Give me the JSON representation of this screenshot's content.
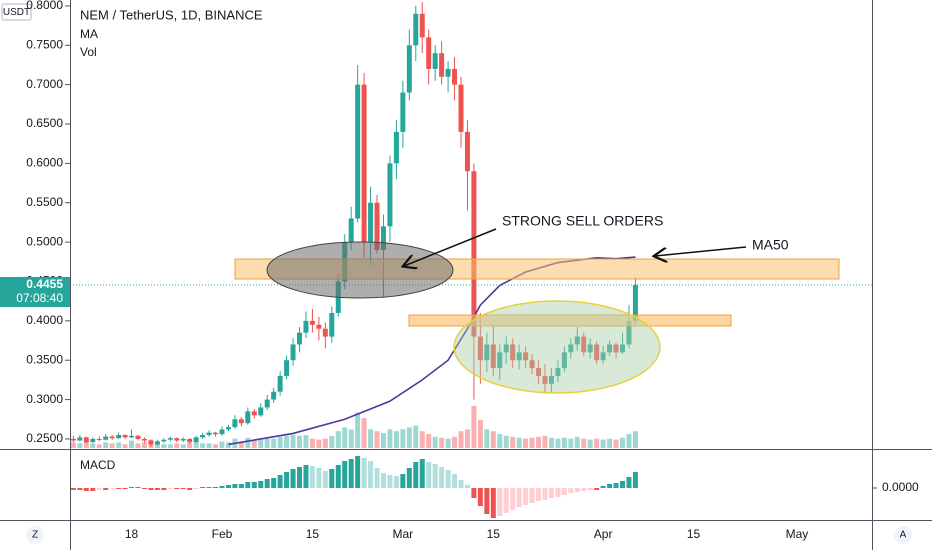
{
  "chart_data": {
    "type": "candlestick",
    "title": "NEM / TetherUS, 1D, BINANCE",
    "currency": "USDT",
    "up_color": "#26a69a",
    "down_color": "#ef5350",
    "ylim": [
      0.2385,
      0.8075
    ],
    "yticks": [
      {
        "value": 0.25,
        "label": "0.2500"
      },
      {
        "value": 0.3,
        "label": "0.3000"
      },
      {
        "value": 0.35,
        "label": "0.3500"
      },
      {
        "value": 0.4,
        "label": "0.4000"
      },
      {
        "value": 0.45,
        "label": "0.4500"
      },
      {
        "value": 0.5,
        "label": "0.5000"
      },
      {
        "value": 0.55,
        "label": "0.5500"
      },
      {
        "value": 0.6,
        "label": "0.6000"
      },
      {
        "value": 0.65,
        "label": "0.6500"
      },
      {
        "value": 0.7,
        "label": "0.7000"
      },
      {
        "value": 0.75,
        "label": "0.7500"
      },
      {
        "value": 0.8,
        "label": "0.8000"
      }
    ],
    "xticks": [
      {
        "value": "Jan 18",
        "label": "18"
      },
      {
        "value": "Feb 1",
        "label": "Feb"
      },
      {
        "value": "Feb 15",
        "label": "15"
      },
      {
        "value": "Mar 1",
        "label": "Mar"
      },
      {
        "value": "Mar 15",
        "label": "15"
      },
      {
        "value": "Apr 1",
        "label": "Apr"
      },
      {
        "value": "Apr 15",
        "label": "15"
      },
      {
        "value": "May 1",
        "label": "May"
      }
    ],
    "candles": [
      {
        "d": "Jan 9",
        "o": 0.25,
        "h": 0.254,
        "l": 0.246,
        "c": 0.248,
        "v": 6,
        "m": -0.002
      },
      {
        "d": "Jan 10",
        "o": 0.248,
        "h": 0.255,
        "l": 0.247,
        "c": 0.252,
        "v": 5,
        "m": -0.002
      },
      {
        "d": "Jan 11",
        "o": 0.252,
        "h": 0.253,
        "l": 0.244,
        "c": 0.246,
        "v": 7,
        "m": -0.003
      },
      {
        "d": "Jan 12",
        "o": 0.246,
        "h": 0.252,
        "l": 0.245,
        "c": 0.25,
        "v": 5,
        "m": -0.003
      },
      {
        "d": "Jan 13",
        "o": 0.25,
        "h": 0.253,
        "l": 0.247,
        "c": 0.249,
        "v": 4,
        "m": -0.002
      },
      {
        "d": "Jan 14",
        "o": 0.249,
        "h": 0.256,
        "l": 0.248,
        "c": 0.253,
        "v": 6,
        "m": -0.002
      },
      {
        "d": "Jan 15",
        "o": 0.253,
        "h": 0.255,
        "l": 0.249,
        "c": 0.251,
        "v": 5,
        "m": -0.001
      },
      {
        "d": "Jan 16",
        "o": 0.251,
        "h": 0.258,
        "l": 0.25,
        "c": 0.255,
        "v": 6,
        "m": -0.001
      },
      {
        "d": "Jan 17",
        "o": 0.255,
        "h": 0.256,
        "l": 0.25,
        "c": 0.252,
        "v": 4,
        "m": -0.001
      },
      {
        "d": "Jan 18",
        "o": 0.252,
        "h": 0.262,
        "l": 0.251,
        "c": 0.254,
        "v": 8,
        "m": 0.001
      },
      {
        "d": "Jan 19",
        "o": 0.254,
        "h": 0.255,
        "l": 0.248,
        "c": 0.25,
        "v": 5,
        "m": 0.001
      },
      {
        "d": "Jan 20",
        "o": 0.25,
        "h": 0.252,
        "l": 0.245,
        "c": 0.248,
        "v": 6,
        "m": -0.001
      },
      {
        "d": "Jan 21",
        "o": 0.248,
        "h": 0.249,
        "l": 0.24,
        "c": 0.243,
        "v": 9,
        "m": -0.002
      },
      {
        "d": "Jan 22",
        "o": 0.243,
        "h": 0.249,
        "l": 0.242,
        "c": 0.247,
        "v": 6,
        "m": -0.002
      },
      {
        "d": "Jan 23",
        "o": 0.247,
        "h": 0.251,
        "l": 0.245,
        "c": 0.249,
        "v": 4,
        "m": -0.002
      },
      {
        "d": "Jan 24",
        "o": 0.249,
        "h": 0.253,
        "l": 0.247,
        "c": 0.251,
        "v": 4,
        "m": -0.001
      },
      {
        "d": "Jan 25",
        "o": 0.251,
        "h": 0.252,
        "l": 0.246,
        "c": 0.248,
        "v": 5,
        "m": -0.001
      },
      {
        "d": "Jan 26",
        "o": 0.248,
        "h": 0.252,
        "l": 0.246,
        "c": 0.25,
        "v": 4,
        "m": -0.001
      },
      {
        "d": "Jan 27",
        "o": 0.25,
        "h": 0.251,
        "l": 0.244,
        "c": 0.246,
        "v": 6,
        "m": -0.002
      },
      {
        "d": "Jan 28",
        "o": 0.246,
        "h": 0.254,
        "l": 0.245,
        "c": 0.252,
        "v": 6,
        "m": -0.001
      },
      {
        "d": "Jan 29",
        "o": 0.252,
        "h": 0.258,
        "l": 0.25,
        "c": 0.255,
        "v": 5,
        "m": 0.001
      },
      {
        "d": "Jan 30",
        "o": 0.255,
        "h": 0.261,
        "l": 0.253,
        "c": 0.258,
        "v": 5,
        "m": 0.001
      },
      {
        "d": "Jan 31",
        "o": 0.258,
        "h": 0.259,
        "l": 0.253,
        "c": 0.256,
        "v": 4,
        "m": 0.001
      },
      {
        "d": "Feb 1",
        "o": 0.256,
        "h": 0.266,
        "l": 0.254,
        "c": 0.262,
        "v": 7,
        "m": 0.002
      },
      {
        "d": "Feb 2",
        "o": 0.262,
        "h": 0.268,
        "l": 0.26,
        "c": 0.265,
        "v": 6,
        "m": 0.003
      },
      {
        "d": "Feb 3",
        "o": 0.265,
        "h": 0.28,
        "l": 0.263,
        "c": 0.275,
        "v": 10,
        "m": 0.004
      },
      {
        "d": "Feb 4",
        "o": 0.275,
        "h": 0.278,
        "l": 0.266,
        "c": 0.27,
        "v": 7,
        "m": 0.004
      },
      {
        "d": "Feb 5",
        "o": 0.27,
        "h": 0.29,
        "l": 0.268,
        "c": 0.285,
        "v": 11,
        "m": 0.006
      },
      {
        "d": "Feb 6",
        "o": 0.285,
        "h": 0.288,
        "l": 0.276,
        "c": 0.28,
        "v": 8,
        "m": 0.006
      },
      {
        "d": "Feb 7",
        "o": 0.28,
        "h": 0.295,
        "l": 0.278,
        "c": 0.29,
        "v": 9,
        "m": 0.007
      },
      {
        "d": "Feb 8",
        "o": 0.29,
        "h": 0.306,
        "l": 0.287,
        "c": 0.3,
        "v": 10,
        "m": 0.009
      },
      {
        "d": "Feb 9",
        "o": 0.3,
        "h": 0.315,
        "l": 0.296,
        "c": 0.31,
        "v": 10,
        "m": 0.01
      },
      {
        "d": "Feb 10",
        "o": 0.31,
        "h": 0.336,
        "l": 0.305,
        "c": 0.33,
        "v": 12,
        "m": 0.013
      },
      {
        "d": "Feb 11",
        "o": 0.33,
        "h": 0.356,
        "l": 0.326,
        "c": 0.35,
        "v": 13,
        "m": 0.016
      },
      {
        "d": "Feb 12",
        "o": 0.35,
        "h": 0.378,
        "l": 0.343,
        "c": 0.37,
        "v": 14,
        "m": 0.019
      },
      {
        "d": "Feb 13",
        "o": 0.37,
        "h": 0.392,
        "l": 0.36,
        "c": 0.385,
        "v": 13,
        "m": 0.021
      },
      {
        "d": "Feb 14",
        "o": 0.385,
        "h": 0.412,
        "l": 0.378,
        "c": 0.4,
        "v": 14,
        "m": 0.023
      },
      {
        "d": "Feb 15",
        "o": 0.4,
        "h": 0.415,
        "l": 0.385,
        "c": 0.395,
        "v": 10,
        "m": 0.022
      },
      {
        "d": "Feb 16",
        "o": 0.395,
        "h": 0.405,
        "l": 0.375,
        "c": 0.39,
        "v": 9,
        "m": 0.02
      },
      {
        "d": "Feb 17",
        "o": 0.39,
        "h": 0.398,
        "l": 0.365,
        "c": 0.38,
        "v": 10,
        "m": 0.017
      },
      {
        "d": "Feb 18",
        "o": 0.38,
        "h": 0.418,
        "l": 0.372,
        "c": 0.41,
        "v": 13,
        "m": 0.019
      },
      {
        "d": "Feb 19",
        "o": 0.41,
        "h": 0.46,
        "l": 0.405,
        "c": 0.45,
        "v": 18,
        "m": 0.023
      },
      {
        "d": "Feb 20",
        "o": 0.45,
        "h": 0.51,
        "l": 0.44,
        "c": 0.5,
        "v": 22,
        "m": 0.027
      },
      {
        "d": "Feb 21",
        "o": 0.5,
        "h": 0.545,
        "l": 0.49,
        "c": 0.53,
        "v": 20,
        "m": 0.029
      },
      {
        "d": "Feb 22",
        "o": 0.53,
        "h": 0.725,
        "l": 0.525,
        "c": 0.7,
        "v": 38,
        "m": 0.032
      },
      {
        "d": "Feb 23",
        "o": 0.7,
        "h": 0.715,
        "l": 0.48,
        "c": 0.5,
        "v": 32,
        "m": 0.03
      },
      {
        "d": "Feb 24",
        "o": 0.5,
        "h": 0.57,
        "l": 0.47,
        "c": 0.55,
        "v": 20,
        "m": 0.027
      },
      {
        "d": "Feb 25",
        "o": 0.55,
        "h": 0.56,
        "l": 0.485,
        "c": 0.49,
        "v": 18,
        "m": 0.02
      },
      {
        "d": "Feb 26",
        "o": 0.49,
        "h": 0.535,
        "l": 0.43,
        "c": 0.52,
        "v": 16,
        "m": 0.015
      },
      {
        "d": "Feb 27",
        "o": 0.52,
        "h": 0.61,
        "l": 0.5,
        "c": 0.6,
        "v": 20,
        "m": 0.013
      },
      {
        "d": "Feb 28",
        "o": 0.6,
        "h": 0.655,
        "l": 0.58,
        "c": 0.64,
        "v": 18,
        "m": 0.012
      },
      {
        "d": "Mar 1",
        "o": 0.64,
        "h": 0.705,
        "l": 0.62,
        "c": 0.69,
        "v": 20,
        "m": 0.014
      },
      {
        "d": "Mar 2",
        "o": 0.69,
        "h": 0.77,
        "l": 0.68,
        "c": 0.75,
        "v": 22,
        "m": 0.02
      },
      {
        "d": "Mar 3",
        "o": 0.75,
        "h": 0.8,
        "l": 0.73,
        "c": 0.79,
        "v": 24,
        "m": 0.026
      },
      {
        "d": "Mar 4",
        "o": 0.79,
        "h": 0.805,
        "l": 0.74,
        "c": 0.76,
        "v": 18,
        "m": 0.029
      },
      {
        "d": "Mar 5",
        "o": 0.76,
        "h": 0.77,
        "l": 0.7,
        "c": 0.72,
        "v": 15,
        "m": 0.026
      },
      {
        "d": "Mar 6",
        "o": 0.72,
        "h": 0.75,
        "l": 0.705,
        "c": 0.74,
        "v": 12,
        "m": 0.024
      },
      {
        "d": "Mar 7",
        "o": 0.74,
        "h": 0.755,
        "l": 0.7,
        "c": 0.71,
        "v": 11,
        "m": 0.021
      },
      {
        "d": "Mar 8",
        "o": 0.71,
        "h": 0.73,
        "l": 0.69,
        "c": 0.72,
        "v": 10,
        "m": 0.018
      },
      {
        "d": "Mar 9",
        "o": 0.72,
        "h": 0.735,
        "l": 0.68,
        "c": 0.7,
        "v": 12,
        "m": 0.014
      },
      {
        "d": "Mar 10",
        "o": 0.7,
        "h": 0.71,
        "l": 0.62,
        "c": 0.64,
        "v": 18,
        "m": 0.008
      },
      {
        "d": "Mar 11",
        "o": 0.64,
        "h": 0.655,
        "l": 0.54,
        "c": 0.59,
        "v": 20,
        "m": 0.003
      },
      {
        "d": "Mar 12",
        "o": 0.59,
        "h": 0.6,
        "l": 0.3,
        "c": 0.38,
        "v": 45,
        "m": -0.01
      },
      {
        "d": "Mar 13",
        "o": 0.38,
        "h": 0.41,
        "l": 0.32,
        "c": 0.35,
        "v": 30,
        "m": -0.018
      },
      {
        "d": "Mar 14",
        "o": 0.35,
        "h": 0.385,
        "l": 0.335,
        "c": 0.37,
        "v": 20,
        "m": -0.026
      },
      {
        "d": "Mar 15",
        "o": 0.37,
        "h": 0.395,
        "l": 0.33,
        "c": 0.34,
        "v": 18,
        "m": -0.03
      },
      {
        "d": "Mar 16",
        "o": 0.34,
        "h": 0.37,
        "l": 0.325,
        "c": 0.36,
        "v": 15,
        "m": -0.028
      },
      {
        "d": "Mar 17",
        "o": 0.36,
        "h": 0.38,
        "l": 0.345,
        "c": 0.37,
        "v": 13,
        "m": -0.025
      },
      {
        "d": "Mar 18",
        "o": 0.37,
        "h": 0.378,
        "l": 0.34,
        "c": 0.35,
        "v": 12,
        "m": -0.022
      },
      {
        "d": "Mar 19",
        "o": 0.35,
        "h": 0.37,
        "l": 0.338,
        "c": 0.36,
        "v": 11,
        "m": -0.019
      },
      {
        "d": "Mar 20",
        "o": 0.36,
        "h": 0.368,
        "l": 0.34,
        "c": 0.35,
        "v": 10,
        "m": -0.017
      },
      {
        "d": "Mar 21",
        "o": 0.35,
        "h": 0.358,
        "l": 0.332,
        "c": 0.34,
        "v": 11,
        "m": -0.015
      },
      {
        "d": "Mar 22",
        "o": 0.34,
        "h": 0.35,
        "l": 0.32,
        "c": 0.33,
        "v": 12,
        "m": -0.013
      },
      {
        "d": "Mar 23",
        "o": 0.33,
        "h": 0.345,
        "l": 0.308,
        "c": 0.32,
        "v": 13,
        "m": -0.012
      },
      {
        "d": "Mar 24",
        "o": 0.32,
        "h": 0.34,
        "l": 0.31,
        "c": 0.33,
        "v": 11,
        "m": -0.01
      },
      {
        "d": "Mar 25",
        "o": 0.33,
        "h": 0.35,
        "l": 0.322,
        "c": 0.34,
        "v": 10,
        "m": -0.009
      },
      {
        "d": "Mar 26",
        "o": 0.34,
        "h": 0.368,
        "l": 0.335,
        "c": 0.36,
        "v": 11,
        "m": -0.007
      },
      {
        "d": "Mar 27",
        "o": 0.36,
        "h": 0.378,
        "l": 0.352,
        "c": 0.37,
        "v": 10,
        "m": -0.005
      },
      {
        "d": "Mar 28",
        "o": 0.37,
        "h": 0.392,
        "l": 0.362,
        "c": 0.38,
        "v": 12,
        "m": -0.004
      },
      {
        "d": "Mar 29",
        "o": 0.38,
        "h": 0.385,
        "l": 0.355,
        "c": 0.36,
        "v": 10,
        "m": -0.003
      },
      {
        "d": "Mar 30",
        "o": 0.36,
        "h": 0.378,
        "l": 0.352,
        "c": 0.37,
        "v": 9,
        "m": -0.002
      },
      {
        "d": "Mar 31",
        "o": 0.37,
        "h": 0.374,
        "l": 0.345,
        "c": 0.35,
        "v": 10,
        "m": -0.002
      },
      {
        "d": "Apr 1",
        "o": 0.35,
        "h": 0.368,
        "l": 0.345,
        "c": 0.36,
        "v": 9,
        "m": 0.002
      },
      {
        "d": "Apr 2",
        "o": 0.36,
        "h": 0.375,
        "l": 0.355,
        "c": 0.37,
        "v": 10,
        "m": 0.004
      },
      {
        "d": "Apr 3",
        "o": 0.37,
        "h": 0.372,
        "l": 0.352,
        "c": 0.36,
        "v": 9,
        "m": 0.005
      },
      {
        "d": "Apr 4",
        "o": 0.36,
        "h": 0.385,
        "l": 0.358,
        "c": 0.37,
        "v": 11,
        "m": 0.007
      },
      {
        "d": "Apr 5",
        "o": 0.37,
        "h": 0.42,
        "l": 0.365,
        "c": 0.4,
        "v": 15,
        "m": 0.011
      },
      {
        "d": "Apr 6",
        "o": 0.4,
        "h": 0.455,
        "l": 0.395,
        "c": 0.4455,
        "v": 18,
        "m": 0.016
      }
    ],
    "ma": {
      "name": "MA",
      "color": "#4a3aa0",
      "x": [
        "Feb 2",
        "Feb 12",
        "Feb 20",
        "Feb 27",
        "Mar 4",
        "Mar 8",
        "Mar 11",
        "Mar 13",
        "Mar 16",
        "Mar 20",
        "Mar 25",
        "Mar 31",
        "Apr 3",
        "Apr 6"
      ],
      "values": [
        0.243,
        0.257,
        0.275,
        0.298,
        0.325,
        0.35,
        0.39,
        0.42,
        0.445,
        0.462,
        0.474,
        0.48,
        0.479,
        0.481
      ]
    },
    "volume_name": "Vol",
    "macd": {
      "name": "MACD",
      "ylim": [
        -0.032,
        0.038
      ],
      "yticks": [
        {
          "value": 0,
          "label": "0.0000"
        }
      ]
    },
    "last_price": {
      "value": 0.4455,
      "label": "0.4455"
    },
    "countdown": "07:08:40",
    "annotations": [
      "STRONG SELL ORDERS",
      "MA50"
    ],
    "buttons": [
      "Z",
      "A"
    ]
  }
}
